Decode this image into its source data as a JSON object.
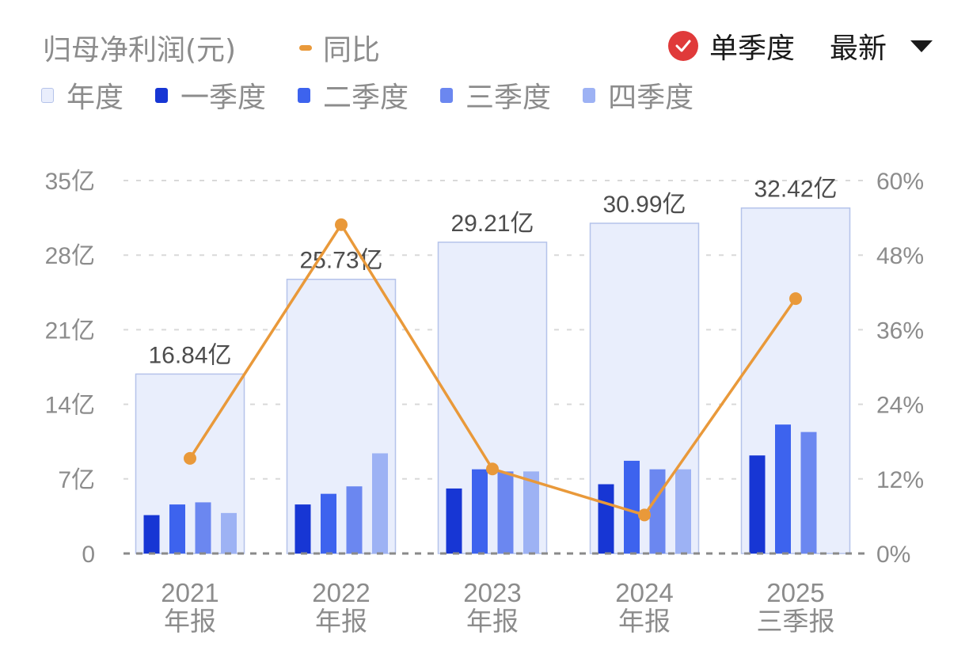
{
  "header": {
    "title": "归母净利润(元)",
    "yoy_label": "同比",
    "single_quarter_label": "单季度",
    "single_quarter_checked": true,
    "sort_label": "最新"
  },
  "legend": [
    {
      "label": "年度",
      "color": "#e9eefc",
      "border": "#b5c3ea"
    },
    {
      "label": "一季度",
      "color": "#1736d4",
      "border": "#1736d4"
    },
    {
      "label": "二季度",
      "color": "#3d63ee",
      "border": "#3d63ee"
    },
    {
      "label": "三季度",
      "color": "#6b87f0",
      "border": "#6b87f0"
    },
    {
      "label": "四季度",
      "color": "#9db2f4",
      "border": "#9db2f4"
    }
  ],
  "colors": {
    "annual_fill": "#e9eefc",
    "annual_border": "#b5c3ea",
    "yoy_line": "#e9993a",
    "axis_text": "#8c8c8c",
    "value_label": "#4d4d4d",
    "check_red": "#e03a3a"
  },
  "chart_data": {
    "type": "bar",
    "title": "归母净利润(元)",
    "categories": [
      "2021\n年报",
      "2022\n年报",
      "2023\n年报",
      "2024\n年报",
      "2025\n三季报"
    ],
    "category_lines": [
      [
        "2021",
        "年报"
      ],
      [
        "2022",
        "年报"
      ],
      [
        "2023",
        "年报"
      ],
      [
        "2024",
        "年报"
      ],
      [
        "2025",
        "三季报"
      ]
    ],
    "annual_labels": [
      "16.84亿",
      "25.73亿",
      "29.21亿",
      "30.99亿",
      "32.42亿"
    ],
    "series": [
      {
        "name": "年度",
        "type": "bar",
        "values": [
          16.84,
          25.73,
          29.21,
          30.99,
          32.42
        ]
      },
      {
        "name": "一季度",
        "type": "bar",
        "values": [
          3.6,
          4.6,
          6.1,
          6.5,
          9.2
        ]
      },
      {
        "name": "二季度",
        "type": "bar",
        "values": [
          4.6,
          5.6,
          7.9,
          8.7,
          12.1
        ]
      },
      {
        "name": "三季度",
        "type": "bar",
        "values": [
          4.8,
          6.3,
          7.7,
          7.9,
          11.4
        ]
      },
      {
        "name": "四季度",
        "type": "bar",
        "values": [
          3.8,
          9.4,
          7.7,
          7.9,
          null
        ]
      },
      {
        "name": "同比",
        "type": "line",
        "axis": "right",
        "values": [
          15.3,
          52.9,
          13.6,
          6.2,
          41.0
        ],
        "unit": "%"
      }
    ],
    "ylabel_left": "亿",
    "ylim_left": [
      0,
      35
    ],
    "yticks_left": [
      "0",
      "7亿",
      "14亿",
      "21亿",
      "28亿",
      "35亿"
    ],
    "ylim_right": [
      0,
      60
    ],
    "yticks_right": [
      "0%",
      "12%",
      "24%",
      "36%",
      "48%",
      "60%"
    ],
    "grid": "dashed horizontal",
    "legend_position": "top"
  }
}
